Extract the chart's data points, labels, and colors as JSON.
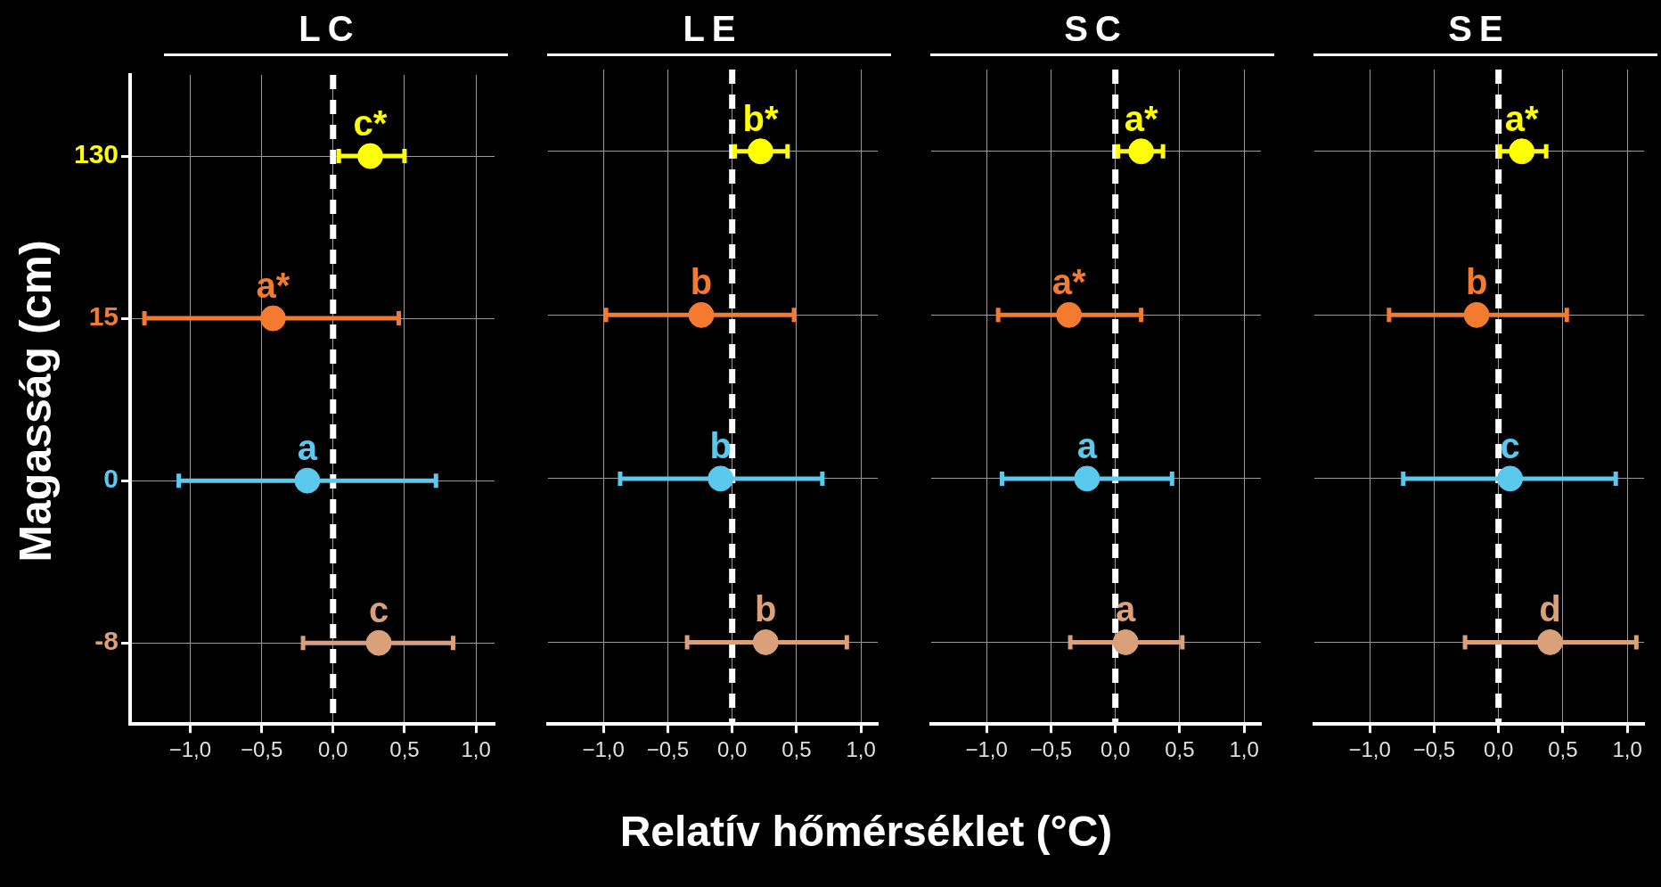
{
  "chart_data": [
    {
      "type": "scatter",
      "title": "LC",
      "xlabel": "Relatív hőmérséklet (°C)",
      "ylabel": "Magasság (cm)",
      "orientation": "horizontal",
      "categories": [
        "130",
        "15",
        "0",
        "-8"
      ],
      "series": [
        {
          "values": [
            0.26,
            -0.42,
            -0.18,
            0.32
          ],
          "errors": [
            [
              0.04,
              0.5
            ],
            [
              -1.32,
              0.46
            ],
            [
              -1.08,
              0.72
            ],
            [
              -0.21,
              0.84
            ]
          ],
          "colors": [
            "#ffff00",
            "#f47a30",
            "#5bc8ee",
            "#d9a07a"
          ],
          "value_labels": [
            "c*",
            "a*",
            "a",
            "c"
          ]
        }
      ],
      "xlim": [
        -1.42,
        1.13
      ],
      "xticks": [
        {
          "value": -1,
          "label": "−1,0"
        },
        {
          "value": -0.5,
          "label": "−0,5"
        },
        {
          "value": 0,
          "label": "0,0"
        },
        {
          "value": 0.5,
          "label": "0,5"
        },
        {
          "value": 1,
          "label": "1,0"
        }
      ],
      "ref_lines": [
        {
          "axis": "x",
          "value": 0,
          "color": "#ffffff",
          "line_style": "dashed"
        }
      ],
      "grid": true,
      "legend": false,
      "marker": "circle"
    },
    {
      "type": "scatter",
      "title": "LE",
      "orientation": "horizontal",
      "categories": [
        "130",
        "15",
        "0",
        "-8"
      ],
      "series": [
        {
          "values": [
            0.22,
            -0.24,
            -0.09,
            0.26
          ],
          "errors": [
            [
              0.02,
              0.43
            ],
            [
              -0.98,
              0.48
            ],
            [
              -0.87,
              0.7
            ],
            [
              -0.35,
              0.89
            ]
          ],
          "colors": [
            "#ffff00",
            "#f47a30",
            "#5bc8ee",
            "#d9a07a"
          ],
          "value_labels": [
            "b*",
            "b",
            "b",
            "b"
          ]
        }
      ],
      "xlim": [
        -1.43,
        1.13
      ],
      "xticks": [
        {
          "value": -1,
          "label": "−1,0"
        },
        {
          "value": -0.5,
          "label": "−0,5"
        },
        {
          "value": 0,
          "label": "0,0"
        },
        {
          "value": 0.5,
          "label": "0,5"
        },
        {
          "value": 1,
          "label": "1,0"
        }
      ],
      "ref_lines": [
        {
          "axis": "x",
          "value": 0,
          "color": "#ffffff",
          "line_style": "dashed"
        }
      ],
      "grid": true,
      "legend": false,
      "marker": "circle",
      "tick_labels": "x"
    },
    {
      "type": "scatter",
      "title": "SC",
      "orientation": "horizontal",
      "categories": [
        "130",
        "15",
        "0",
        "-8"
      ],
      "series": [
        {
          "values": [
            0.2,
            -0.36,
            -0.22,
            0.08
          ],
          "errors": [
            [
              0.02,
              0.37
            ],
            [
              -0.91,
              0.2
            ],
            [
              -0.88,
              0.44
            ],
            [
              -0.35,
              0.52
            ]
          ],
          "colors": [
            "#ffff00",
            "#f47a30",
            "#5bc8ee",
            "#d9a07a"
          ],
          "value_labels": [
            "a*",
            "a*",
            "a",
            "a"
          ]
        }
      ],
      "xlim": [
        -1.43,
        1.13
      ],
      "xticks": [
        {
          "value": -1,
          "label": "−1,0"
        },
        {
          "value": -0.5,
          "label": "−0,5"
        },
        {
          "value": 0,
          "label": "0,0"
        },
        {
          "value": 0.5,
          "label": "0,5"
        },
        {
          "value": 1,
          "label": "1,0"
        }
      ],
      "ref_lines": [
        {
          "axis": "x",
          "value": 0,
          "color": "#ffffff",
          "line_style": "dashed"
        }
      ],
      "grid": true,
      "legend": false,
      "marker": "circle",
      "tick_labels": "x"
    },
    {
      "type": "scatter",
      "title": "SE",
      "orientation": "horizontal",
      "categories": [
        "130",
        "15",
        "0",
        "-8"
      ],
      "series": [
        {
          "values": [
            0.18,
            -0.17,
            0.09,
            0.4
          ],
          "errors": [
            [
              0.01,
              0.37
            ],
            [
              -0.85,
              0.53
            ],
            [
              -0.74,
              0.91
            ],
            [
              -0.26,
              1.07
            ]
          ],
          "colors": [
            "#ffff00",
            "#f47a30",
            "#5bc8ee",
            "#d9a07a"
          ],
          "value_labels": [
            "a*",
            "b",
            "c",
            "d"
          ]
        }
      ],
      "xlim": [
        -1.43,
        1.13
      ],
      "xticks": [
        {
          "value": -1,
          "label": "−1,0"
        },
        {
          "value": -0.5,
          "label": "−0,5"
        },
        {
          "value": 0,
          "label": "0,0"
        },
        {
          "value": 0.5,
          "label": "0,5"
        },
        {
          "value": 1,
          "label": "1,0"
        }
      ],
      "ref_lines": [
        {
          "axis": "x",
          "value": 0,
          "color": "#ffffff",
          "line_style": "dashed"
        }
      ],
      "grid": true,
      "legend": false,
      "marker": "circle",
      "tick_labels": "x"
    }
  ]
}
